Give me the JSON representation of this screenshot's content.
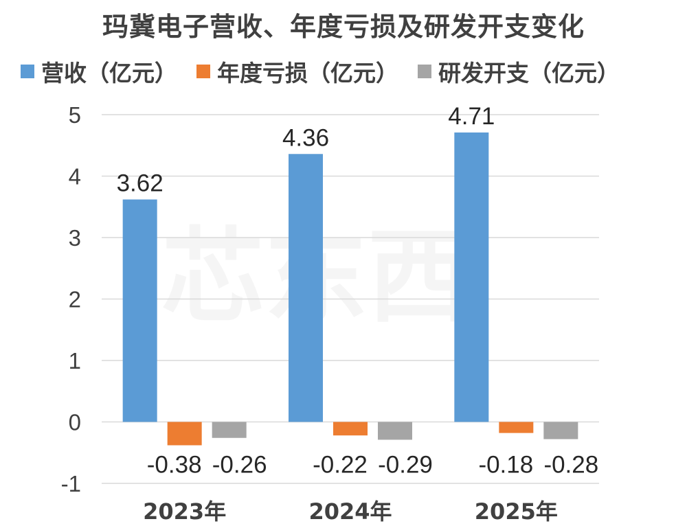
{
  "chart_data": {
    "type": "bar",
    "title": "玛冀电子营收、年度亏损及研发开支变化",
    "categories": [
      "2023年",
      "2024年",
      "2025年"
    ],
    "series": [
      {
        "name": "营收（亿元）",
        "values": [
          3.62,
          4.36,
          4.71
        ],
        "color": "#5B9BD5"
      },
      {
        "name": "年度亏损（亿元）",
        "values": [
          -0.38,
          -0.22,
          -0.18
        ],
        "color": "#ED7D31"
      },
      {
        "name": "研发开支（亿元）",
        "values": [
          -0.26,
          -0.29,
          -0.28
        ],
        "color": "#A5A5A5"
      }
    ],
    "ylim": [
      -1,
      5
    ],
    "yticks": [
      -1,
      0,
      1,
      2,
      3,
      4,
      5
    ],
    "xlabel": "",
    "ylabel": "",
    "legend_position": "top",
    "grid": true,
    "gridline_color": "#D9D9D9",
    "data_labels": true,
    "watermark": "芯东西"
  }
}
